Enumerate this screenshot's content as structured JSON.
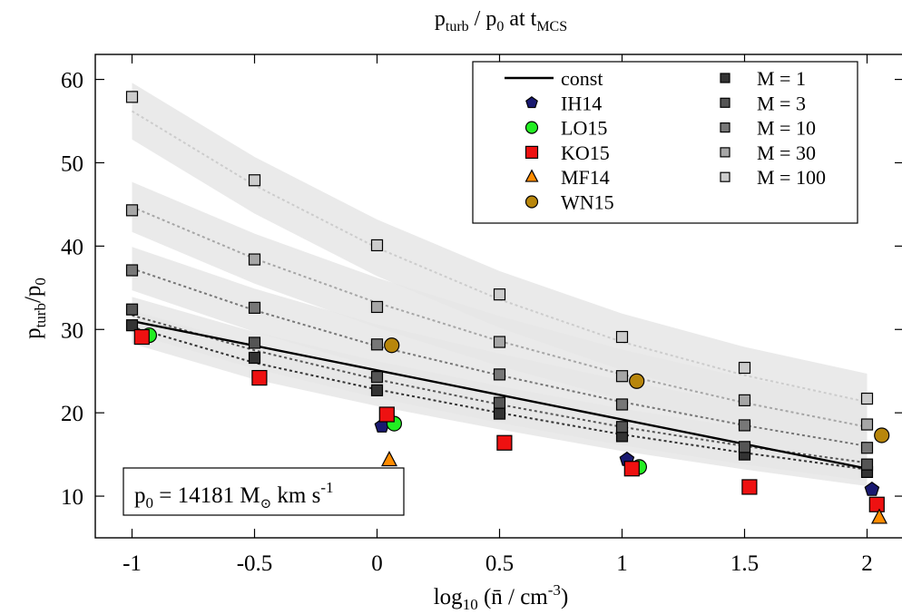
{
  "title": {
    "base": "p",
    "sub1": "turb",
    "mid": " / p",
    "sub2": "0",
    "tail": " at t",
    "sub3": "MCS"
  },
  "ylabel": {
    "base": "p",
    "sub1": "turb",
    "mid": "/p",
    "sub2": "0"
  },
  "xlabel": {
    "pre": "log",
    "sub": "10",
    "mid": " (n̄ / cm",
    "sup": "-3",
    "post": ")"
  },
  "annotation": {
    "pre": "p",
    "sub": "0",
    "mid": " = 14181 M",
    "sun": "⊙",
    "post": " km s",
    "sup": "-1"
  },
  "colors": {
    "band": "#e6e6e6",
    "IH14": "#191970",
    "LO15": "#22ee22",
    "KO15": "#ee1111",
    "MF14": "#ff8c00",
    "WN15": "#b8860b",
    "M1": "#333333",
    "M3": "#555555",
    "M10": "#777777",
    "M30": "#a6a6a6",
    "M100": "#cccccc"
  },
  "chart_data": {
    "type": "scatter",
    "xlim": [
      -1.15,
      2.15
    ],
    "ylim": [
      5,
      63
    ],
    "xticks": [
      -1,
      -0.5,
      0,
      0.5,
      1,
      1.5,
      2
    ],
    "xtick_labels": [
      "-1",
      "-0.5",
      "0",
      "0.5",
      "1",
      "1.5",
      "2"
    ],
    "yticks": [
      10,
      20,
      30,
      40,
      50,
      60
    ],
    "ytick_labels": [
      "10",
      "20",
      "30",
      "40",
      "50",
      "60"
    ],
    "grid": false,
    "legend_position": "top-right",
    "const_line": {
      "name": "const",
      "x": [
        -1,
        2
      ],
      "y": [
        31.0,
        13.3
      ]
    },
    "model_series": [
      {
        "name": "M = 1",
        "color_key": "M1",
        "x": [
          -1,
          -0.5,
          0,
          0.5,
          1,
          1.5,
          2
        ],
        "y": [
          30.5,
          26.6,
          22.7,
          19.9,
          17.2,
          15.0,
          12.9
        ],
        "fit": [
          30.3,
          26.0,
          22.8,
          20.0,
          17.4,
          15.2,
          13.2
        ],
        "band": 2.0
      },
      {
        "name": "M = 3",
        "color_key": "M3",
        "x": [
          -1,
          -0.5,
          0,
          0.5,
          1,
          1.5,
          2
        ],
        "y": [
          32.4,
          28.4,
          24.3,
          21.2,
          18.3,
          15.9,
          13.8
        ],
        "fit": [
          31.7,
          27.5,
          24.0,
          21.0,
          18.3,
          16.0,
          14.0
        ],
        "band": 2.2
      },
      {
        "name": "M = 10",
        "color_key": "M10",
        "x": [
          -1,
          -0.5,
          0,
          0.5,
          1,
          1.5,
          2
        ],
        "y": [
          37.1,
          32.6,
          28.2,
          24.6,
          21.0,
          18.5,
          15.8
        ],
        "fit": [
          37.3,
          32.3,
          28.0,
          24.5,
          21.3,
          18.5,
          16.0
        ],
        "band": 2.6
      },
      {
        "name": "M = 30",
        "color_key": "M30",
        "x": [
          -1,
          -0.5,
          0,
          0.5,
          1,
          1.5,
          2
        ],
        "y": [
          44.3,
          38.4,
          32.7,
          28.5,
          24.4,
          21.5,
          18.6
        ],
        "fit": [
          44.7,
          38.5,
          33.2,
          28.6,
          24.6,
          21.2,
          18.3
        ],
        "band": 3.0
      },
      {
        "name": "M = 100",
        "color_key": "M100",
        "x": [
          -1,
          -0.5,
          0,
          0.5,
          1,
          1.5,
          2
        ],
        "y": [
          57.9,
          47.9,
          40.1,
          34.2,
          29.1,
          25.4,
          21.7
        ],
        "fit": [
          56.2,
          47.3,
          39.8,
          33.6,
          28.5,
          24.5,
          21.3
        ],
        "band": 3.4
      }
    ],
    "literature_series": [
      {
        "name": "IH14",
        "marker": "pentagon",
        "color_key": "IH14",
        "x": [
          0.02,
          1.02,
          2.02
        ],
        "y": [
          18.4,
          14.4,
          10.8
        ]
      },
      {
        "name": "LO15",
        "marker": "circle",
        "color_key": "LO15",
        "x": [
          -0.93,
          0.07,
          1.07
        ],
        "y": [
          29.3,
          18.7,
          13.5
        ]
      },
      {
        "name": "KO15",
        "marker": "square",
        "color_key": "KO15",
        "x": [
          -0.96,
          -0.48,
          0.04,
          0.52,
          1.04,
          1.52,
          2.04
        ],
        "y": [
          29.1,
          24.2,
          19.8,
          16.4,
          13.3,
          11.1,
          9.0
        ]
      },
      {
        "name": "MF14",
        "marker": "triangle",
        "color_key": "MF14",
        "x": [
          0.05,
          2.05
        ],
        "y": [
          14.3,
          7.4
        ]
      },
      {
        "name": "WN15",
        "marker": "circle",
        "color_key": "WN15",
        "x": [
          0.06,
          1.06,
          2.06
        ],
        "y": [
          28.1,
          23.8,
          17.3
        ]
      }
    ]
  }
}
